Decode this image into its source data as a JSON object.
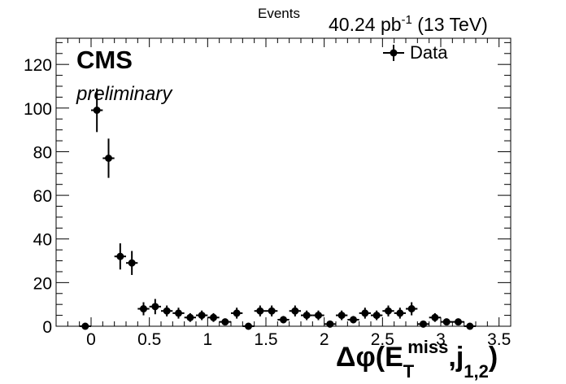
{
  "chart_data": {
    "type": "scatter",
    "ylabel": "Events",
    "xlabel": {
      "main": "Δφ(E",
      "sub": "T",
      "sup": "miss",
      "mid": ",j",
      "sub2": "1,2",
      "end": ")"
    },
    "lumi": {
      "value": "40.24 pb",
      "sup": "-1",
      "energy": " (13 TeV)"
    },
    "cms_label": "CMS",
    "preliminary_label": "preliminary",
    "legend": [
      {
        "name": "Data",
        "marker": "circle-with-error"
      }
    ],
    "xlim": [
      -0.3,
      3.6
    ],
    "ylim": [
      0,
      132
    ],
    "xticks": [
      0,
      0.5,
      1,
      1.5,
      2,
      2.5,
      3,
      3.5
    ],
    "xtick_labels": [
      "0",
      "0.5",
      "1",
      "1.5",
      "2",
      "2.5",
      "3",
      "3.5"
    ],
    "yticks": [
      0,
      20,
      40,
      60,
      80,
      100,
      120
    ],
    "ytick_labels": [
      "0",
      "20",
      "40",
      "60",
      "80",
      "100",
      "120"
    ],
    "bin_halfwidth": 0.05,
    "points": [
      {
        "x": -0.05,
        "y": 0
      },
      {
        "x": 0.05,
        "y": 99,
        "err": 10
      },
      {
        "x": 0.15,
        "y": 77,
        "err": 9
      },
      {
        "x": 0.25,
        "y": 32,
        "err": 6
      },
      {
        "x": 0.35,
        "y": 29,
        "err": 5.5
      },
      {
        "x": 0.45,
        "y": 8,
        "err": 3
      },
      {
        "x": 0.55,
        "y": 9,
        "err": 3.5
      },
      {
        "x": 0.65,
        "y": 7,
        "err": 2.5
      },
      {
        "x": 0.75,
        "y": 6,
        "err": 2.5
      },
      {
        "x": 0.85,
        "y": 4,
        "err": 2
      },
      {
        "x": 0.95,
        "y": 5,
        "err": 2.2
      },
      {
        "x": 1.05,
        "y": 4,
        "err": 2
      },
      {
        "x": 1.15,
        "y": 2,
        "err": 1.5
      },
      {
        "x": 1.25,
        "y": 6,
        "err": 2.5
      },
      {
        "x": 1.35,
        "y": 0
      },
      {
        "x": 1.45,
        "y": 7,
        "err": 2.5
      },
      {
        "x": 1.55,
        "y": 7,
        "err": 2.5
      },
      {
        "x": 1.65,
        "y": 3,
        "err": 1.7
      },
      {
        "x": 1.75,
        "y": 7,
        "err": 2.5
      },
      {
        "x": 1.85,
        "y": 5,
        "err": 2.2
      },
      {
        "x": 1.95,
        "y": 5,
        "err": 2.2
      },
      {
        "x": 2.05,
        "y": 1,
        "err": 1
      },
      {
        "x": 2.15,
        "y": 5,
        "err": 2.2
      },
      {
        "x": 2.25,
        "y": 3,
        "err": 1.7
      },
      {
        "x": 2.35,
        "y": 6,
        "err": 2.5
      },
      {
        "x": 2.45,
        "y": 5,
        "err": 2.2
      },
      {
        "x": 2.55,
        "y": 7,
        "err": 2.5
      },
      {
        "x": 2.65,
        "y": 6,
        "err": 2.5
      },
      {
        "x": 2.75,
        "y": 8,
        "err": 3
      },
      {
        "x": 2.85,
        "y": 1,
        "err": 1
      },
      {
        "x": 2.95,
        "y": 4,
        "err": 2
      },
      {
        "x": 3.05,
        "y": 2,
        "err": 1.5
      },
      {
        "x": 3.15,
        "y": 2,
        "err": 1.5
      },
      {
        "x": 3.25,
        "y": 0
      }
    ]
  }
}
